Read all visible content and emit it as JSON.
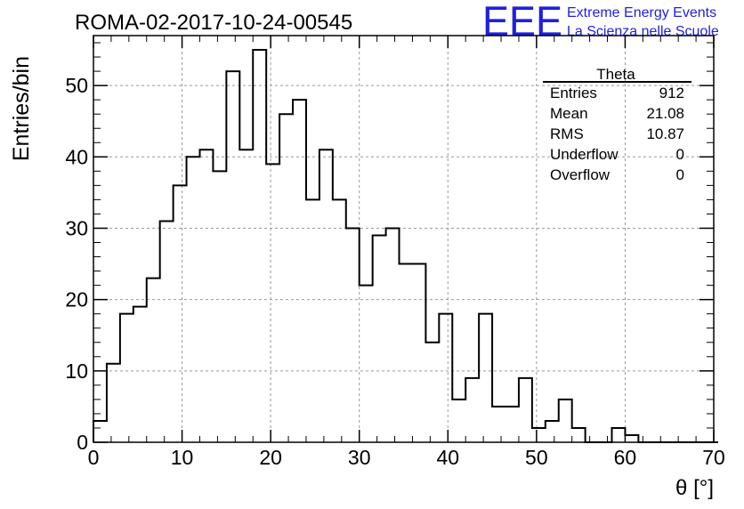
{
  "header": {
    "run_title": "ROMA-02-2017-10-24-00545",
    "logo_text": "EEE",
    "logo_line1": "Extreme Energy Events",
    "logo_line2": "La Scienza nelle Scuole",
    "logo_color": "#1f1fe0"
  },
  "stats_box": {
    "title": "Theta",
    "rows": [
      {
        "label": "Entries",
        "value": "912"
      },
      {
        "label": "Mean",
        "value": "21.08"
      },
      {
        "label": "RMS",
        "value": "10.87"
      },
      {
        "label": "Underflow",
        "value": "0"
      },
      {
        "label": "Overflow",
        "value": "0"
      }
    ]
  },
  "chart_data": {
    "type": "bar",
    "style": "step-histogram",
    "xlabel": "θ [°]",
    "ylabel": "Entries/bin",
    "xlim": [
      0,
      70
    ],
    "ylim": [
      0,
      57
    ],
    "x_ticks": [
      0,
      10,
      20,
      30,
      40,
      50,
      60,
      70
    ],
    "y_ticks": [
      0,
      10,
      20,
      30,
      40,
      50
    ],
    "grid": true,
    "bin_width": 1.5,
    "bin_edges_start": 0,
    "values": [
      3,
      11,
      18,
      19,
      23,
      31,
      36,
      40,
      41,
      38,
      52,
      41,
      55,
      39,
      46,
      48,
      34,
      41,
      34,
      30,
      22,
      29,
      30,
      25,
      25,
      14,
      18,
      6,
      9,
      18,
      5,
      5,
      9,
      2,
      3,
      6,
      2,
      0,
      0,
      2,
      1,
      0,
      0,
      0,
      0,
      0,
      0
    ]
  }
}
